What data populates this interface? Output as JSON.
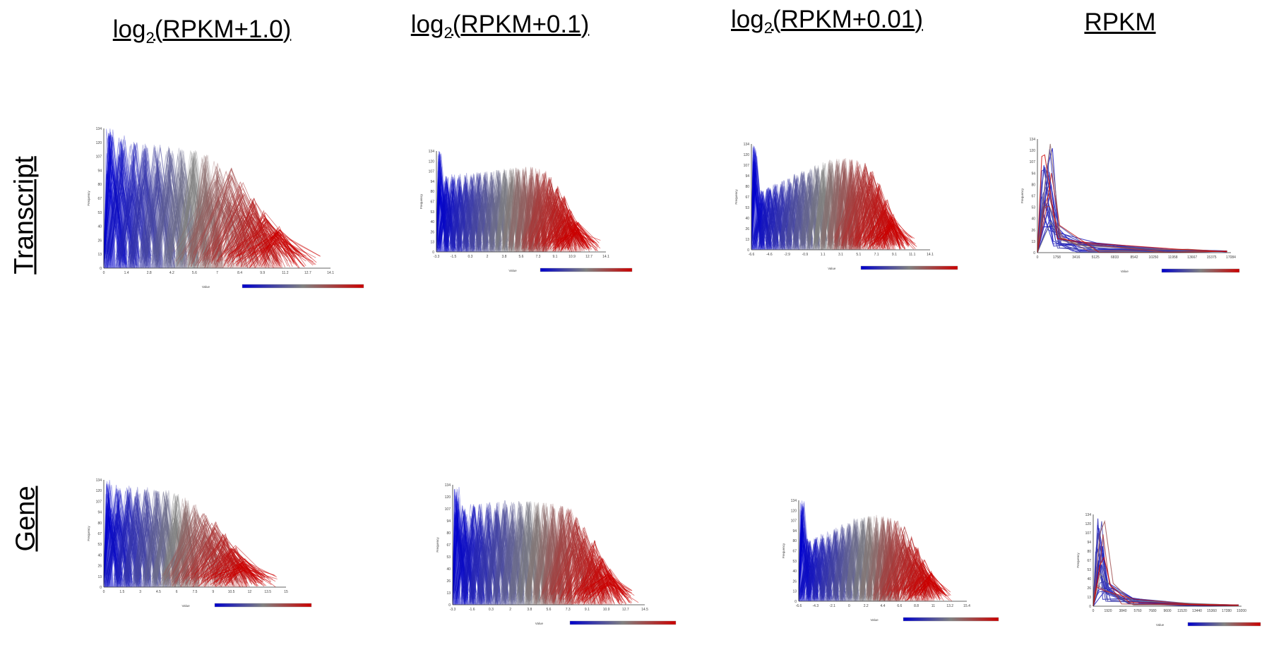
{
  "columns": [
    "RPKM+1.0",
    "RPKM+0.1",
    "RPKM+0.01",
    "RPKM"
  ],
  "column_prefix": "log",
  "column_subscript": "2",
  "rows": [
    "Transcript",
    "Gene"
  ],
  "colors": {
    "low": "#0000cc",
    "mid": "#808080",
    "high": "#cc0000"
  },
  "chart_data": [
    {
      "type": "line",
      "row": "Transcript",
      "column": "log2(RPKM+1.0)",
      "ylabel": "Frequency",
      "xlabel": "Value",
      "yticks": [
        "0",
        "13",
        "26",
        "40",
        "53",
        "67",
        "80",
        "94",
        "107",
        "120",
        "134"
      ],
      "xticks": [
        "0",
        "1.4",
        "2.8",
        "4.2",
        "5.6",
        "7",
        "8.4",
        "9.9",
        "11.2",
        "12.7",
        "14.1"
      ],
      "ylim": [
        0,
        134
      ],
      "peaks": [
        134,
        128,
        122,
        120,
        119,
        118,
        117,
        114,
        110,
        104,
        96,
        85,
        70,
        55,
        40
      ],
      "spread": [
        0,
        2
      ],
      "tail_len": 4,
      "legend": "colorbar"
    },
    {
      "type": "line",
      "row": "Transcript",
      "column": "log2(RPKM+0.1)",
      "ylabel": "Frequency",
      "xlabel": "Value",
      "yticks": [
        "0",
        "13",
        "26",
        "40",
        "53",
        "67",
        "80",
        "94",
        "107",
        "120",
        "134"
      ],
      "xticks": [
        "-3.3",
        "-1.5",
        "0.3",
        "2",
        "3.8",
        "5.6",
        "7.3",
        "9.1",
        "10.9",
        "12.7",
        "14.1"
      ],
      "ylim": [
        0,
        134
      ],
      "peaks": [
        134,
        102,
        103,
        104,
        105,
        106,
        107,
        108,
        109,
        110,
        111,
        112,
        113,
        114,
        113,
        111,
        108,
        102,
        90,
        75,
        58,
        42
      ],
      "spread": [
        0,
        3
      ],
      "tail_len": 4,
      "legend": "colorbar"
    },
    {
      "type": "line",
      "row": "Transcript",
      "column": "log2(RPKM+0.01)",
      "ylabel": "Frequency",
      "xlabel": "Value",
      "yticks": [
        "0",
        "13",
        "26",
        "40",
        "53",
        "67",
        "80",
        "94",
        "107",
        "120",
        "134"
      ],
      "xticks": [
        "-6.6",
        "-4.6",
        "-2.9",
        "-0.9",
        "1.1",
        "3.1",
        "5.1",
        "7.1",
        "9.1",
        "11.1",
        "14.1"
      ],
      "ylim": [
        0,
        134
      ],
      "peaks": [
        134,
        76,
        80,
        84,
        88,
        92,
        96,
        100,
        104,
        108,
        112,
        114,
        116,
        117,
        116,
        114,
        110,
        100,
        85,
        65,
        45
      ],
      "spread": [
        0,
        4
      ],
      "tail_len": 5,
      "legend": "colorbar"
    },
    {
      "type": "line",
      "row": "Transcript",
      "column": "RPKM",
      "ylabel": "Frequency",
      "xlabel": "Value",
      "yticks": [
        "0",
        "13",
        "26",
        "40",
        "53",
        "67",
        "80",
        "94",
        "107",
        "120",
        "134"
      ],
      "xticks": [
        "0",
        "1758",
        "3416",
        "5125",
        "6833",
        "8542",
        "10250",
        "11958",
        "13667",
        "15375",
        "17084"
      ],
      "ylim": [
        0,
        134
      ],
      "style": "spike",
      "legend": "colorbar"
    },
    {
      "type": "line",
      "row": "Gene",
      "column": "log2(RPKM+1.0)",
      "ylabel": "Frequency",
      "xlabel": "Value",
      "yticks": [
        "0",
        "13",
        "26",
        "40",
        "53",
        "67",
        "80",
        "94",
        "107",
        "120",
        "134"
      ],
      "xticks": [
        "0",
        "1.5",
        "3",
        "4.5",
        "6",
        "7.5",
        "9",
        "10.5",
        "12",
        "13.5",
        "15"
      ],
      "ylim": [
        0,
        134
      ],
      "peaks": [
        134,
        128,
        127,
        126,
        125,
        124,
        122,
        118,
        112,
        104,
        94,
        82,
        68,
        52,
        38
      ],
      "spread": [
        0,
        2
      ],
      "tail_len": 4,
      "legend": "colorbar"
    },
    {
      "type": "line",
      "row": "Gene",
      "column": "log2(RPKM+0.1)",
      "ylabel": "Frequency",
      "xlabel": "Value",
      "yticks": [
        "0",
        "13",
        "26",
        "40",
        "53",
        "67",
        "80",
        "94",
        "107",
        "120",
        "134"
      ],
      "xticks": [
        "-3.3",
        "-1.6",
        "0.3",
        "2",
        "3.8",
        "5.6",
        "7.3",
        "9.1",
        "10.9",
        "12.7",
        "14.5"
      ],
      "ylim": [
        0,
        134
      ],
      "peaks": [
        134,
        112,
        113,
        114,
        115,
        116,
        117,
        117,
        117,
        117,
        116,
        115,
        114,
        112,
        108,
        100,
        88,
        72,
        55,
        40
      ],
      "spread": [
        0,
        3
      ],
      "tail_len": 4,
      "legend": "colorbar"
    },
    {
      "type": "line",
      "row": "Gene",
      "column": "log2(RPKM+0.01)",
      "ylabel": "Frequency",
      "xlabel": "Value",
      "yticks": [
        "0",
        "13",
        "26",
        "40",
        "53",
        "67",
        "80",
        "94",
        "107",
        "120",
        "134"
      ],
      "xticks": [
        "-6.6",
        "-4.3",
        "-2.1",
        "0",
        "2.2",
        "4.4",
        "6.6",
        "8.8",
        "11",
        "13.2",
        "15.4"
      ],
      "ylim": [
        0,
        134
      ],
      "peaks": [
        134,
        84,
        86,
        90,
        94,
        98,
        102,
        106,
        110,
        112,
        114,
        115,
        114,
        112,
        108,
        100,
        88,
        72,
        56,
        40
      ],
      "spread": [
        0,
        4
      ],
      "tail_len": 5,
      "legend": "colorbar"
    },
    {
      "type": "line",
      "row": "Gene",
      "column": "RPKM",
      "ylabel": "Frequency",
      "xlabel": "Value",
      "yticks": [
        "0",
        "13",
        "26",
        "40",
        "53",
        "67",
        "80",
        "94",
        "107",
        "120",
        "134"
      ],
      "xticks": [
        "0",
        "1920",
        "3840",
        "5760",
        "7680",
        "9600",
        "11520",
        "13440",
        "15360",
        "17280",
        "19200"
      ],
      "ylim": [
        0,
        134
      ],
      "style": "spike",
      "legend": "colorbar"
    }
  ]
}
